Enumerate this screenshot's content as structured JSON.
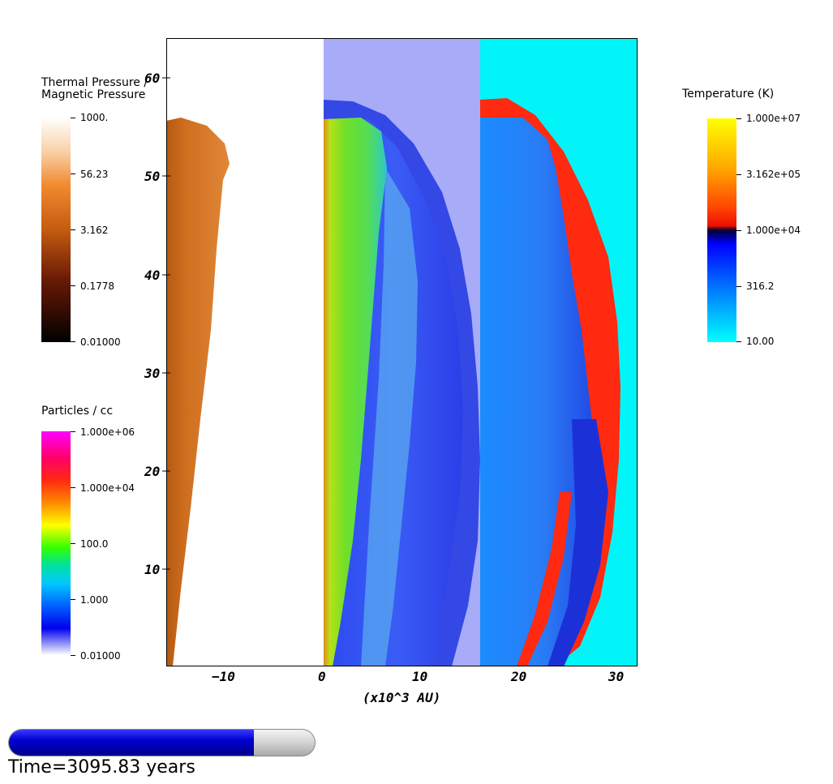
{
  "colorbars": {
    "pressure_ratio": {
      "title": "Thermal Pressure /\nMagnetic Pressure",
      "labels": [
        "1000.",
        "56.23",
        "3.162",
        "0.1778",
        "0.01000"
      ]
    },
    "density": {
      "title": "Particles / cc",
      "labels": [
        "1.000e+06",
        "1.000e+04",
        "100.0",
        "1.000",
        "0.01000"
      ]
    },
    "temperature": {
      "title": "Temperature (K)",
      "labels": [
        "1.000e+07",
        "3.162e+05",
        "1.000e+04",
        "316.2",
        "10.00"
      ]
    }
  },
  "axes": {
    "x_ticks": [
      "−10",
      "0",
      "10",
      "20",
      "30"
    ],
    "y_ticks": [
      "60",
      "50",
      "40",
      "30",
      "20",
      "10"
    ],
    "x_title": "(x10^3 AU)"
  },
  "animation": {
    "progress": 0.8,
    "time_text": "Time=3095.83 years"
  }
}
